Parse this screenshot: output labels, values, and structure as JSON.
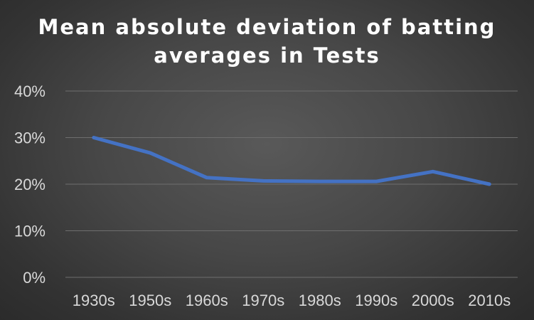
{
  "chart_data": {
    "type": "line",
    "title_lines": [
      "Mean absolute deviation of batting",
      "averages in Tests"
    ],
    "xlabel": "",
    "ylabel": "",
    "categories": [
      "1930s",
      "1950s",
      "1960s",
      "1970s",
      "1980s",
      "1990s",
      "2000s",
      "2010s"
    ],
    "series": [
      {
        "name": "Mean absolute deviation",
        "values": [
          0.3,
          0.267,
          0.214,
          0.207,
          0.206,
          0.206,
          0.227,
          0.2
        ]
      }
    ],
    "ylim": [
      0,
      0.4
    ],
    "yticks": [
      0,
      0.1,
      0.2,
      0.3,
      0.4
    ],
    "ytick_labels": [
      "0%",
      "10%",
      "20%",
      "30%",
      "40%"
    ],
    "grid": true,
    "legend": "none",
    "colors": {
      "series": "#4472C4",
      "grid": "#6e6e6e",
      "text": "#d9d9d9",
      "title": "#ffffff"
    }
  }
}
